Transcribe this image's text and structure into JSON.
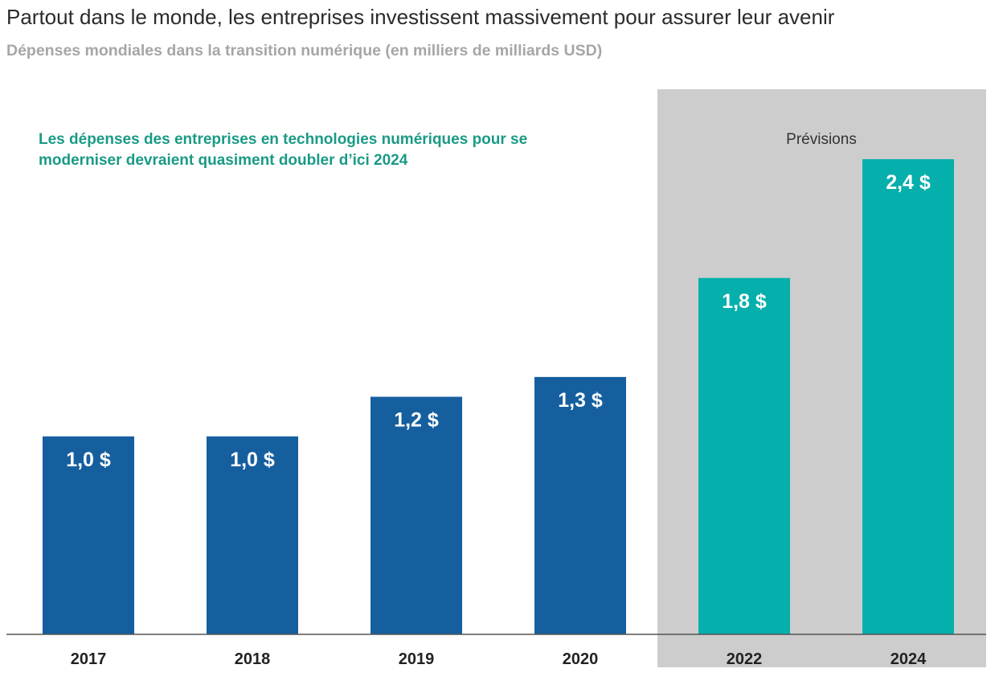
{
  "chart_data": {
    "type": "bar",
    "title": "Partout dans le monde, les entreprises investissent massivement pour assurer leur avenir",
    "subtitle": "Dépenses mondiales dans la transition numérique (en milliers de milliards USD)",
    "annotation": [
      "Les dépenses des entreprises en technologies numériques pour se",
      "moderniser devraient quasiment doubler d’ici 2024"
    ],
    "forecast_label": "Prévisions",
    "categories": [
      "2017",
      "2018",
      "2019",
      "2020",
      "2022",
      "2024"
    ],
    "values": [
      1.0,
      1.0,
      1.2,
      1.3,
      1.8,
      2.4
    ],
    "value_labels": [
      "1,0 $",
      "1,0 $",
      "1,2 $",
      "1,3 $",
      "1,8 $",
      "2,4 $"
    ],
    "forecast": [
      false,
      false,
      false,
      false,
      true,
      true
    ],
    "ylim": [
      0,
      2.4
    ],
    "grid": false,
    "xlabel": "",
    "ylabel": "",
    "colors": {
      "actual": "#165f9f",
      "forecast": "#05afac",
      "forecast_background": "#cdcdcd",
      "annotation": "#1a9a85",
      "axis": "#555555"
    }
  }
}
